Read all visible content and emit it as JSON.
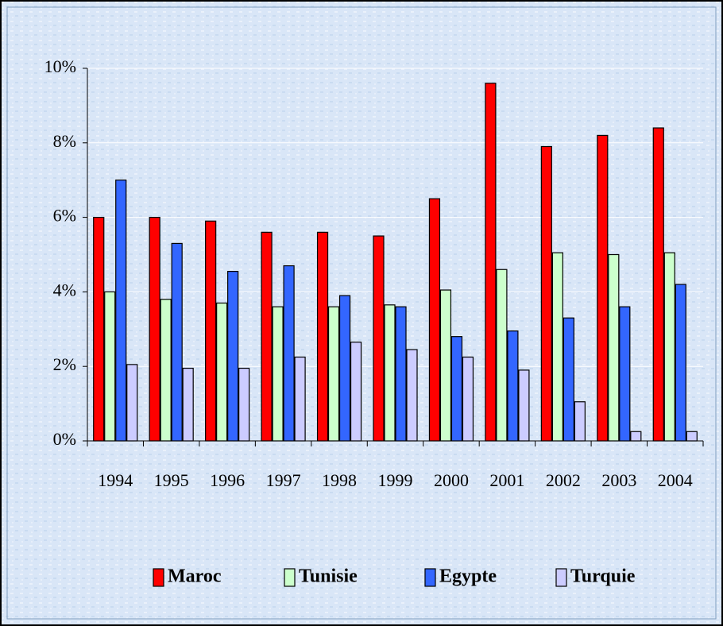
{
  "chart_data": {
    "type": "bar",
    "categories": [
      "1994",
      "1995",
      "1996",
      "1997",
      "1998",
      "1999",
      "2000",
      "2001",
      "2002",
      "2003",
      "2004"
    ],
    "series": [
      {
        "name": "Maroc",
        "color": "#ff0000",
        "values": [
          6.0,
          6.0,
          5.9,
          5.6,
          5.6,
          5.5,
          6.5,
          9.6,
          7.9,
          8.2,
          8.4
        ]
      },
      {
        "name": "Tunisie",
        "color": "#ccffcc",
        "values": [
          4.0,
          3.8,
          3.7,
          3.6,
          3.6,
          3.65,
          4.05,
          4.6,
          5.05,
          5.0,
          5.05
        ]
      },
      {
        "name": "Egypte",
        "color": "#3366ff",
        "values": [
          7.0,
          5.3,
          4.55,
          4.7,
          3.9,
          3.6,
          2.8,
          2.95,
          3.3,
          3.6,
          4.2
        ]
      },
      {
        "name": "Turquie",
        "color": "#ccccff",
        "values": [
          2.05,
          1.95,
          1.95,
          2.25,
          2.65,
          2.45,
          2.25,
          1.9,
          1.05,
          0.25,
          0.25
        ]
      }
    ],
    "ylim": [
      0,
      10
    ],
    "yticks": [
      {
        "value": 0,
        "label": "0%"
      },
      {
        "value": 2,
        "label": "2%"
      },
      {
        "value": 4,
        "label": "4%"
      },
      {
        "value": 6,
        "label": "6%"
      },
      {
        "value": 8,
        "label": "8%"
      },
      {
        "value": 10,
        "label": "10%"
      }
    ],
    "grid": true,
    "legend": "bottom"
  }
}
